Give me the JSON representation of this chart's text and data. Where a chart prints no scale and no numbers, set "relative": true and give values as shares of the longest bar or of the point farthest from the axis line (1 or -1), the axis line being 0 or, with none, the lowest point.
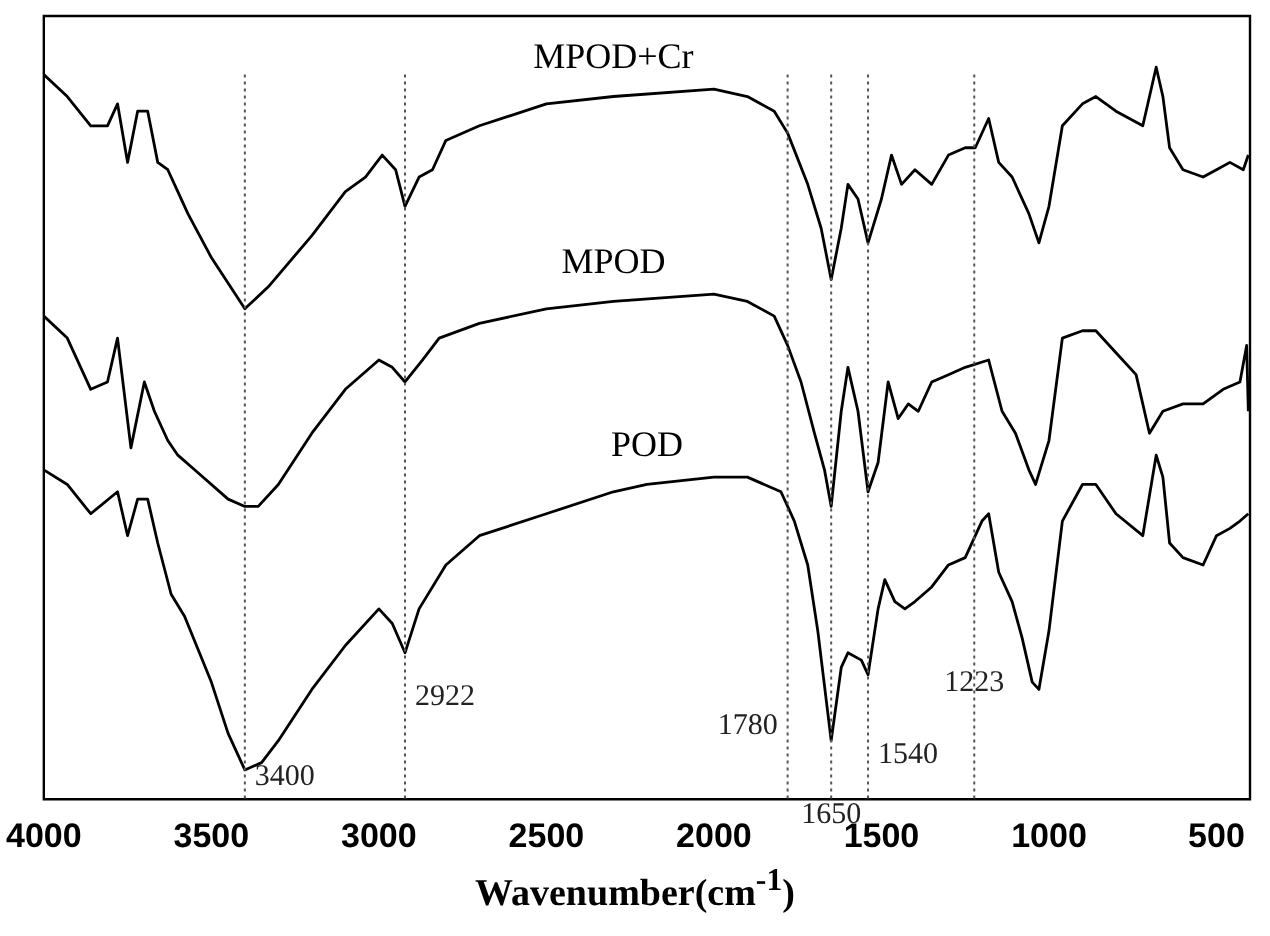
{
  "chart_data": {
    "type": "line",
    "xlabel": "Wavenumber(cm$^{-1}$)",
    "relative": true,
    "xlim": [
      4000,
      400
    ],
    "xticks": [
      4000,
      3500,
      3000,
      2500,
      2000,
      1500,
      1000,
      500
    ],
    "tick_labels": "x",
    "grid": false,
    "legend": false,
    "marker": "none",
    "line_style": "solid",
    "x": [
      4000,
      3930,
      3860,
      3810,
      3780,
      3750,
      3720,
      3690,
      3660,
      3630,
      3610,
      3570,
      3500,
      3400,
      3330,
      3200,
      3100,
      3040,
      2990,
      2950,
      2922,
      2880,
      2840,
      2800,
      2700,
      2500,
      2300,
      2000,
      1900,
      1820,
      1780,
      1720,
      1680,
      1650,
      1620,
      1600,
      1570,
      1540,
      1500,
      1470,
      1440,
      1400,
      1350,
      1300,
      1250,
      1220,
      1180,
      1150,
      1110,
      1060,
      1030,
      1000,
      960,
      900,
      860,
      800,
      720,
      680,
      660,
      640,
      600,
      540,
      500,
      460,
      420,
      405
    ],
    "series": [
      {
        "name": "MPOD+Cr",
        "color": "#000000",
        "values": [
          0.99,
          0.96,
          0.92,
          0.92,
          0.95,
          0.87,
          0.94,
          0.94,
          0.87,
          0.86,
          0.84,
          0.8,
          0.74,
          0.67,
          0.7,
          0.77,
          0.83,
          0.85,
          0.88,
          0.86,
          0.81,
          0.85,
          0.86,
          0.9,
          0.92,
          0.95,
          0.96,
          0.97,
          0.96,
          0.94,
          0.91,
          0.84,
          0.78,
          0.71,
          0.78,
          0.84,
          0.82,
          0.76,
          0.82,
          0.88,
          0.84,
          0.86,
          0.84,
          0.88,
          0.89,
          0.89,
          0.93,
          0.87,
          0.85,
          0.8,
          0.76,
          0.81,
          0.92,
          0.95,
          0.96,
          0.94,
          0.92,
          1.0,
          0.96,
          0.89,
          0.86,
          0.85,
          0.86,
          0.87,
          0.86,
          0.88
        ]
      },
      {
        "name": "MPOD",
        "color": "#000000",
        "x": [
          4000,
          3930,
          3860,
          3810,
          3780,
          3740,
          3700,
          3670,
          3630,
          3600,
          3550,
          3450,
          3400,
          3360,
          3300,
          3200,
          3100,
          3000,
          2960,
          2922,
          2870,
          2820,
          2700,
          2500,
          2300,
          2000,
          1900,
          1820,
          1780,
          1740,
          1700,
          1670,
          1650,
          1620,
          1600,
          1570,
          1540,
          1510,
          1480,
          1450,
          1420,
          1390,
          1350,
          1300,
          1250,
          1180,
          1140,
          1100,
          1060,
          1040,
          1000,
          960,
          900,
          860,
          800,
          740,
          700,
          660,
          600,
          540,
          480,
          430,
          410,
          405
        ],
        "values": [
          0.66,
          0.63,
          0.56,
          0.57,
          0.63,
          0.48,
          0.57,
          0.53,
          0.49,
          0.47,
          0.45,
          0.41,
          0.4,
          0.4,
          0.43,
          0.5,
          0.56,
          0.6,
          0.59,
          0.57,
          0.6,
          0.63,
          0.65,
          0.67,
          0.68,
          0.69,
          0.68,
          0.66,
          0.62,
          0.57,
          0.5,
          0.45,
          0.4,
          0.53,
          0.59,
          0.53,
          0.42,
          0.46,
          0.57,
          0.52,
          0.54,
          0.53,
          0.57,
          0.58,
          0.59,
          0.6,
          0.53,
          0.5,
          0.45,
          0.43,
          0.49,
          0.63,
          0.64,
          0.64,
          0.61,
          0.58,
          0.5,
          0.53,
          0.54,
          0.54,
          0.56,
          0.57,
          0.62,
          0.53
        ]
      },
      {
        "name": "POD",
        "color": "#000000",
        "x": [
          4000,
          3930,
          3860,
          3780,
          3750,
          3720,
          3690,
          3660,
          3620,
          3580,
          3500,
          3450,
          3400,
          3350,
          3300,
          3200,
          3100,
          3000,
          2960,
          2922,
          2880,
          2800,
          2700,
          2500,
          2300,
          2200,
          2000,
          1900,
          1800,
          1760,
          1720,
          1690,
          1650,
          1620,
          1600,
          1560,
          1540,
          1510,
          1490,
          1460,
          1430,
          1400,
          1350,
          1300,
          1250,
          1200,
          1180,
          1150,
          1110,
          1080,
          1050,
          1030,
          1000,
          960,
          900,
          860,
          800,
          720,
          680,
          660,
          640,
          600,
          540,
          500,
          460,
          430,
          405
        ],
        "values": [
          0.45,
          0.43,
          0.39,
          0.42,
          0.36,
          0.41,
          0.41,
          0.35,
          0.28,
          0.25,
          0.16,
          0.09,
          0.04,
          0.05,
          0.08,
          0.15,
          0.21,
          0.26,
          0.24,
          0.2,
          0.26,
          0.32,
          0.36,
          0.39,
          0.42,
          0.43,
          0.44,
          0.44,
          0.42,
          0.38,
          0.32,
          0.23,
          0.08,
          0.18,
          0.2,
          0.19,
          0.17,
          0.26,
          0.3,
          0.27,
          0.26,
          0.27,
          0.29,
          0.32,
          0.33,
          0.38,
          0.39,
          0.31,
          0.27,
          0.22,
          0.16,
          0.15,
          0.23,
          0.38,
          0.43,
          0.43,
          0.39,
          0.36,
          0.47,
          0.44,
          0.35,
          0.33,
          0.32,
          0.36,
          0.37,
          0.38,
          0.39
        ]
      }
    ],
    "ref_lines": [
      {
        "axis": "x",
        "value": 3400,
        "label": "3400",
        "color": "#555555",
        "line_style": "dotted"
      },
      {
        "axis": "x",
        "value": 2922,
        "label": "2922",
        "color": "#555555",
        "line_style": "dotted"
      },
      {
        "axis": "x",
        "value": 1780,
        "label": "1780",
        "color": "#555555",
        "line_style": "dotted"
      },
      {
        "axis": "x",
        "value": 1650,
        "label": "1650",
        "color": "#555555",
        "line_style": "dotted"
      },
      {
        "axis": "x",
        "value": 1540,
        "label": "1540",
        "color": "#555555",
        "line_style": "dotted"
      },
      {
        "axis": "x",
        "value": 1223,
        "label": "1223",
        "color": "#555555",
        "line_style": "dotted"
      }
    ]
  }
}
